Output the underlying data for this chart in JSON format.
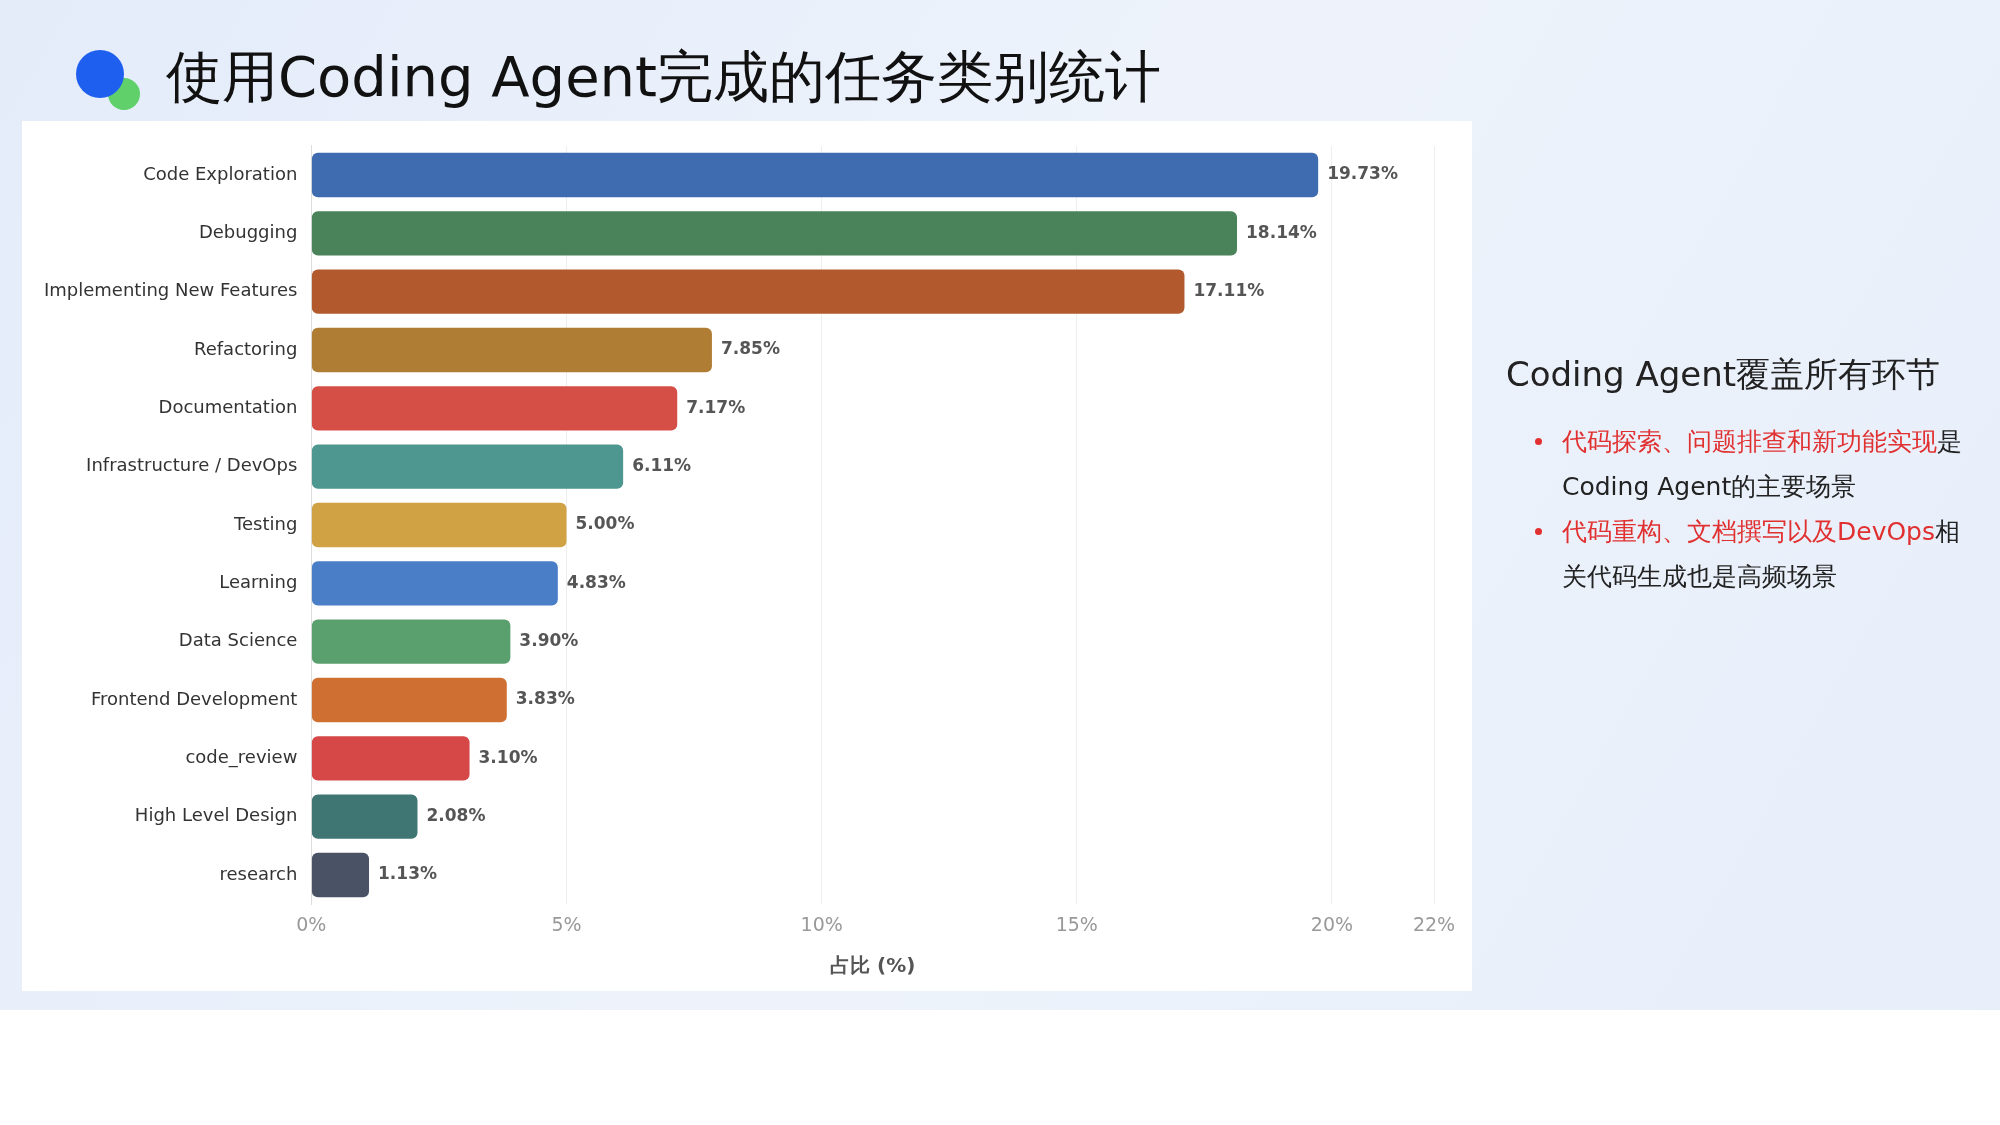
{
  "chart_data": {
    "type": "bar",
    "orientation": "horizontal",
    "title": "使用Coding Agent完成的任务类别统计",
    "xlabel": "占比 (%)",
    "categories": [
      "Code Exploration",
      "Debugging",
      "Implementing New Features",
      "Refactoring",
      "Documentation",
      "Infrastructure / DevOps",
      "Testing",
      "Learning",
      "Data Science",
      "Frontend Development",
      "code_review",
      "High Level Design",
      "research"
    ],
    "values": [
      19.73,
      18.14,
      17.11,
      7.85,
      7.17,
      6.11,
      5.0,
      4.83,
      3.9,
      3.83,
      3.1,
      2.08,
      1.13
    ],
    "value_labels": [
      "19.73%",
      "18.14%",
      "17.11%",
      "7.85%",
      "7.17%",
      "6.11%",
      "5.00%",
      "4.83%",
      "3.90%",
      "3.83%",
      "3.10%",
      "2.08%",
      "1.13%"
    ],
    "colors": [
      "#3f6bb0",
      "#4a8259",
      "#b25a2e",
      "#b07d35",
      "#d64f47",
      "#4e9690",
      "#d0a244",
      "#4a7fc8",
      "#5aa06e",
      "#d06f32",
      "#d64848",
      "#3f7674",
      "#4a5266"
    ],
    "xlim": [
      0,
      22
    ],
    "xticks": [
      {
        "value": 0,
        "label": "0%"
      },
      {
        "value": 5,
        "label": "5%"
      },
      {
        "value": 10,
        "label": "10%"
      },
      {
        "value": 15,
        "label": "15%"
      },
      {
        "value": 20,
        "label": "20%"
      },
      {
        "value": 22,
        "label": "22%"
      }
    ],
    "grid": "x",
    "legend": false,
    "annotations": [
      "Coding Agent覆盖所有环节",
      "代码探索、问题排查和新功能实现",
      "是Coding Agent的主要场景",
      "代码重构、文档撰写以及DevOps",
      "相关代码生成也是高频场景"
    ]
  }
}
